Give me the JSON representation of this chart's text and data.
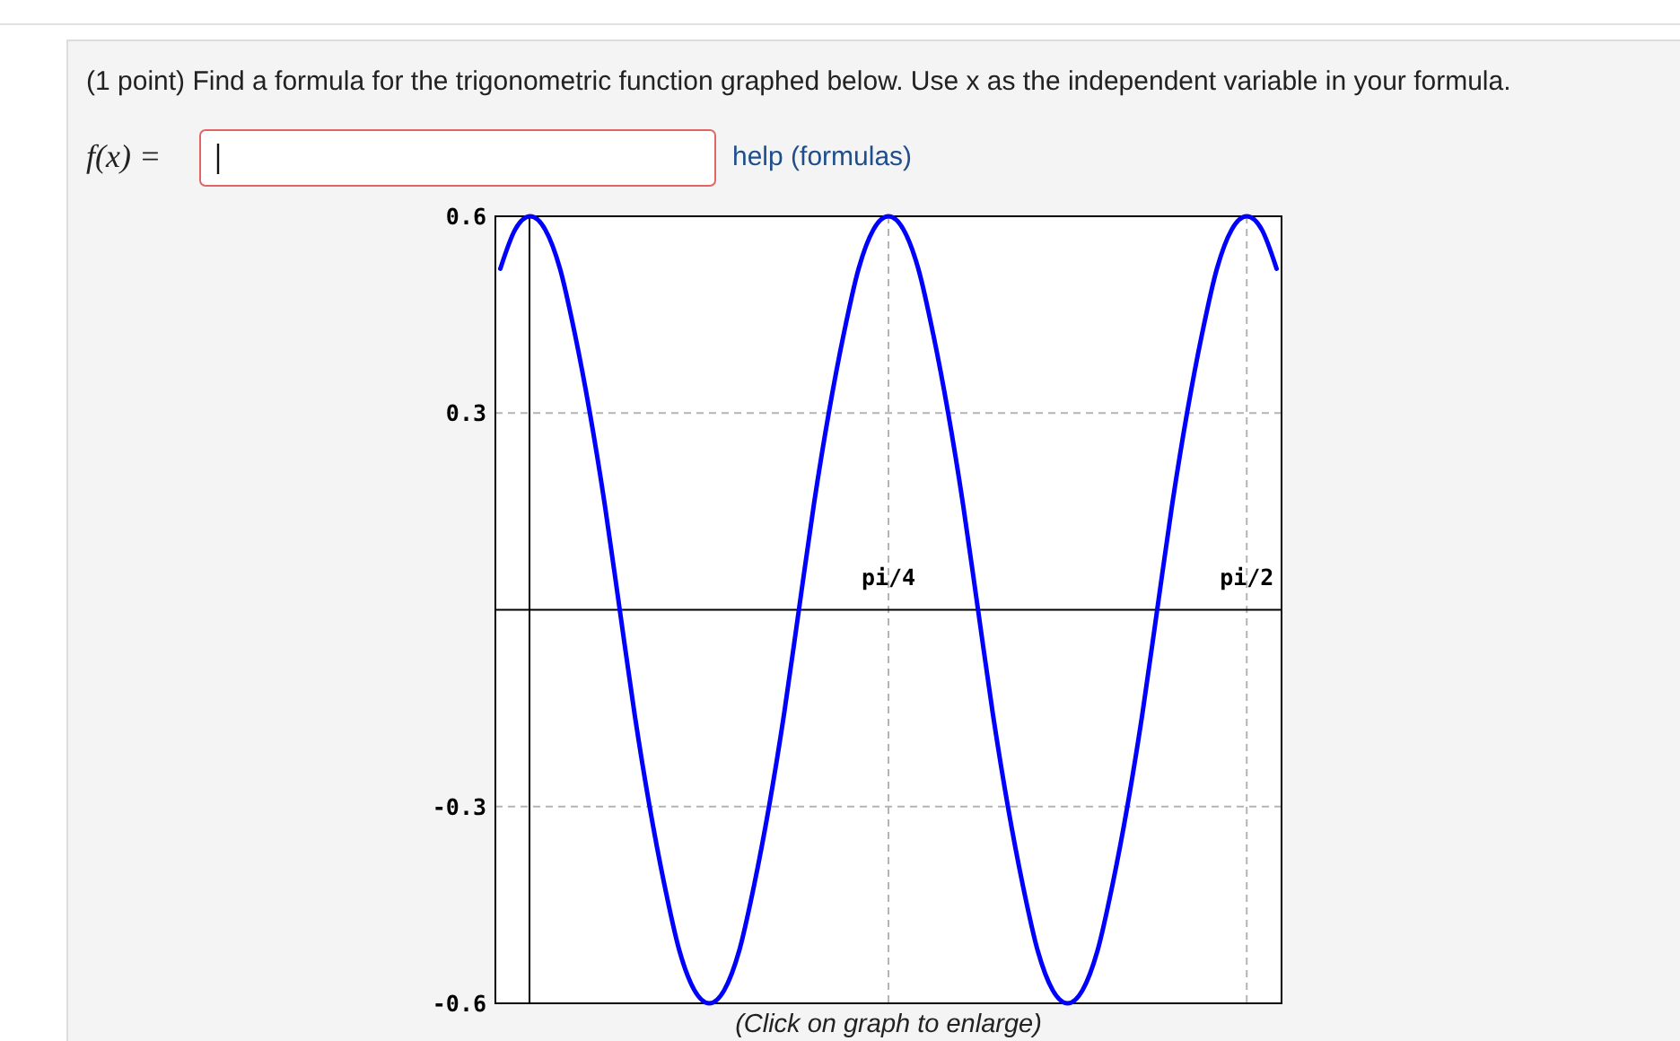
{
  "chart_data": {
    "type": "line",
    "title": "(1 point) Find a formula for the trigonometric function graphed below. Use x as the independent variable in your formula.",
    "annotations": [
      "f(x) =",
      "help (formulas)",
      "(Click on graph to enlarge)"
    ],
    "categories": [
      null,
      null,
      null,
      null,
      null,
      null,
      null,
      null,
      null,
      null,
      null,
      null,
      null,
      null,
      null,
      null,
      null,
      null,
      null,
      null,
      null,
      null,
      null,
      null,
      null,
      null,
      "pi/4",
      null,
      null,
      null,
      null,
      null,
      null,
      null,
      null,
      null,
      null,
      null,
      null,
      null,
      null,
      null,
      null,
      null,
      null,
      null,
      null,
      null,
      null,
      null,
      "pi/2",
      null,
      null
    ],
    "values": [
      0.52,
      0.58,
      0.6,
      0.58,
      0.52,
      0.42,
      0.3,
      0.16,
      0,
      -0.16,
      -0.3,
      -0.42,
      -0.52,
      -0.58,
      -0.6,
      -0.58,
      -0.52,
      -0.42,
      -0.3,
      -0.16,
      0,
      0.16,
      0.3,
      0.42,
      0.52,
      0.58,
      0.6,
      0.58,
      0.52,
      0.42,
      0.3,
      0.16,
      0,
      -0.16,
      -0.3,
      -0.42,
      -0.52,
      -0.58,
      -0.6,
      -0.58,
      -0.52,
      -0.42,
      -0.3,
      -0.16,
      0,
      0.16,
      0.3,
      0.42,
      0.52,
      0.58,
      0.6,
      0.58,
      0.52
    ],
    "color": "#0000ff",
    "ylim": [
      -0.6,
      0.6
    ],
    "yticks": [
      -0.6,
      -0.3,
      0.3,
      0.6
    ],
    "grid": true
  }
}
